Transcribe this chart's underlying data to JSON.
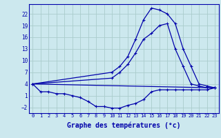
{
  "background_color": "#cce8ee",
  "grid_color": "#aacccc",
  "line_color": "#0000aa",
  "xlabel": "Graphe des températures (°c)",
  "xlabel_fontsize": 7,
  "yticks": [
    -2,
    1,
    4,
    7,
    10,
    13,
    16,
    19,
    22
  ],
  "xticks": [
    0,
    1,
    2,
    3,
    4,
    5,
    6,
    7,
    8,
    9,
    10,
    11,
    12,
    13,
    14,
    15,
    16,
    17,
    18,
    19,
    20,
    21,
    22,
    23
  ],
  "xlim": [
    -0.5,
    23.5
  ],
  "ylim": [
    -3.5,
    24.5
  ],
  "curve1_x": [
    0,
    1,
    2,
    3,
    4,
    5,
    6,
    7,
    8,
    9,
    10,
    11,
    12,
    13,
    14,
    15,
    16,
    17,
    18,
    19,
    20,
    21,
    22,
    23
  ],
  "curve1_y": [
    4,
    2,
    2,
    1.5,
    1.5,
    1,
    0.5,
    -0.5,
    -1.8,
    -1.8,
    -2.2,
    -2.2,
    -1.5,
    -1,
    0,
    2,
    2.5,
    2.5,
    2.5,
    2.5,
    2.5,
    2.5,
    2.5,
    3
  ],
  "curve2_x": [
    0,
    23
  ],
  "curve2_y": [
    4,
    3
  ],
  "curve3_x": [
    0,
    10,
    11,
    12,
    13,
    14,
    15,
    16,
    17,
    18,
    19,
    20,
    21,
    22,
    23
  ],
  "curve3_y": [
    4,
    7,
    8.5,
    11,
    15.5,
    20.5,
    23.5,
    23,
    22,
    19.5,
    13,
    8.5,
    4,
    3.5,
    3
  ],
  "curve4_x": [
    0,
    10,
    11,
    12,
    13,
    14,
    15,
    16,
    17,
    18,
    19,
    20,
    21,
    22,
    23
  ],
  "curve4_y": [
    4,
    5.5,
    7,
    9,
    12,
    15.5,
    17,
    19,
    19.5,
    13,
    8.5,
    4,
    3.5,
    3,
    3
  ]
}
